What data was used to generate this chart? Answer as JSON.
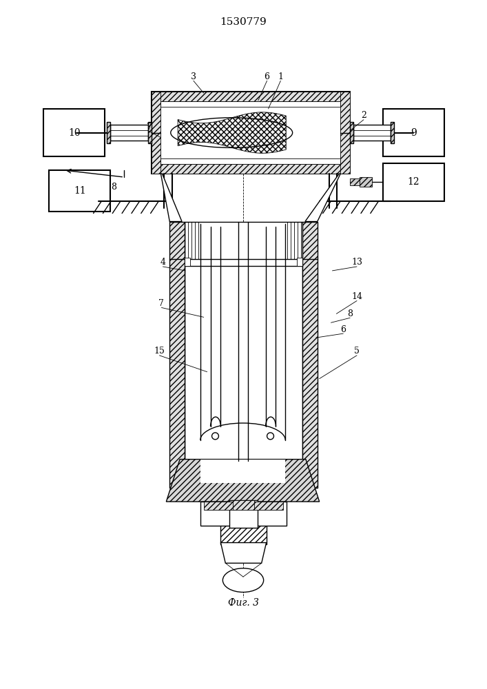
{
  "title": "1530779",
  "fig_label": "Фиг. 3",
  "bg_color": "#ffffff",
  "line_color": "#000000",
  "figsize": [
    7.07,
    10.0
  ],
  "dpi": 100
}
